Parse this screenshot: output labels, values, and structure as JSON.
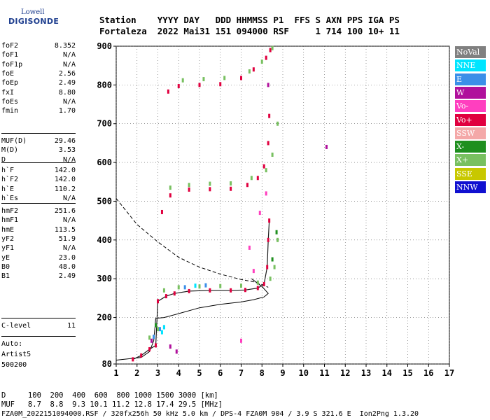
{
  "logo": {
    "line1": "Lowell",
    "line2": "DIGISONDE"
  },
  "header": {
    "row1": "Station    YYYY DAY   DDD HHMMSS P1  FFS S AXN PPS IGA PS",
    "row2": "Fortaleza  2022 Mai31 151 094000 RSF     1 714 100 10+ 11"
  },
  "params": {
    "group1": [
      {
        "k": "foF2",
        "v": "8.352"
      },
      {
        "k": "foF1",
        "v": "N/A"
      },
      {
        "k": "foF1p",
        "v": "N/A"
      },
      {
        "k": "foE",
        "v": "2.56"
      },
      {
        "k": "foEp",
        "v": "2.49"
      },
      {
        "k": "fxI",
        "v": "8.80"
      },
      {
        "k": "foEs",
        "v": "N/A"
      },
      {
        "k": "fmin",
        "v": "1.70"
      }
    ],
    "group2": [
      {
        "k": "MUF(D)",
        "v": "29.46"
      },
      {
        "k": "M(D)",
        "v": "3.53"
      },
      {
        "k": "D",
        "v": "N/A"
      }
    ],
    "group3": [
      {
        "k": "h`F",
        "v": "142.0"
      },
      {
        "k": "h`F2",
        "v": "142.0"
      },
      {
        "k": "h`E",
        "v": "110.2"
      },
      {
        "k": "h`Es",
        "v": "N/A"
      }
    ],
    "group4": [
      {
        "k": "hmF2",
        "v": "251.6"
      },
      {
        "k": "hmF1",
        "v": "N/A"
      },
      {
        "k": "hmE",
        "v": "113.5"
      },
      {
        "k": "yF2",
        "v": "51.9"
      },
      {
        "k": "yF1",
        "v": "N/A"
      },
      {
        "k": "yE",
        "v": "23.0"
      },
      {
        "k": "B0",
        "v": "48.0"
      },
      {
        "k": "B1",
        "v": "2.49"
      }
    ],
    "clevel": {
      "k": "C-level",
      "v": "11"
    },
    "auto": [
      "Auto:",
      "Artist5",
      "500200"
    ]
  },
  "legend": [
    {
      "label": "NoVal",
      "color": "#808080"
    },
    {
      "label": "NNE",
      "color": "#00e5ff"
    },
    {
      "label": "E",
      "color": "#3b8fe8"
    },
    {
      "label": "W",
      "color": "#b0109c"
    },
    {
      "label": "Vo-",
      "color": "#ff3fbf"
    },
    {
      "label": "Vo+",
      "color": "#e0003f"
    },
    {
      "label": "SSW",
      "color": "#f4a8a8"
    },
    {
      "label": "X-",
      "color": "#1f8f1f"
    },
    {
      "label": "X+",
      "color": "#78c060"
    },
    {
      "label": "SSE",
      "color": "#c8c800"
    },
    {
      "label": "NNW",
      "color": "#1010d0"
    }
  ],
  "bottom": {
    "row1": "D     100  200  400  600  800 1000 1500 3000 [km]",
    "row2": "MUF   8.7  8.8  9.3 10.1 11.2 12.8 17.4 29.5 [MHz]",
    "row3": "FZA0M_2022151094000.RSF / 320fx256h 50 kHz 5.0 km / DPS-4 FZA0M 904 / 3.9 S 321.6 E  Ion2Png 1.3.20"
  },
  "chart_data": {
    "type": "scatter",
    "xlim": [
      1,
      17
    ],
    "ylim": [
      80,
      900
    ],
    "xticks": [
      1,
      2,
      3,
      4,
      5,
      6,
      7,
      8,
      9,
      10,
      11,
      12,
      13,
      14,
      15,
      16,
      17
    ],
    "yticks": [
      80,
      200,
      300,
      400,
      500,
      600,
      700,
      800,
      900
    ],
    "grid": true,
    "series": [
      {
        "name": "Vo+",
        "color": "#e0003f",
        "points": [
          [
            1.8,
            92
          ],
          [
            2.2,
            102
          ],
          [
            2.6,
            118
          ],
          [
            2.9,
            128
          ],
          [
            3.0,
            242
          ],
          [
            3.4,
            255
          ],
          [
            3.8,
            262
          ],
          [
            4.5,
            268
          ],
          [
            5.5,
            270
          ],
          [
            6.5,
            270
          ],
          [
            7.2,
            271
          ],
          [
            7.8,
            276
          ],
          [
            8.1,
            286
          ],
          [
            8.25,
            330
          ],
          [
            8.3,
            400
          ],
          [
            8.35,
            450
          ],
          [
            3.2,
            472
          ],
          [
            3.6,
            515
          ],
          [
            4.5,
            530
          ],
          [
            5.5,
            531
          ],
          [
            6.5,
            532
          ],
          [
            7.3,
            542
          ],
          [
            7.8,
            560
          ],
          [
            8.1,
            590
          ],
          [
            8.3,
            650
          ],
          [
            8.35,
            720
          ],
          [
            3.5,
            783
          ],
          [
            4.0,
            797
          ],
          [
            5.0,
            800
          ],
          [
            6.0,
            802
          ],
          [
            7.0,
            818
          ],
          [
            7.6,
            840
          ],
          [
            8.2,
            870
          ],
          [
            8.4,
            890
          ]
        ]
      },
      {
        "name": "X+",
        "color": "#78c060",
        "points": [
          [
            2.6,
            148
          ],
          [
            3.0,
            170
          ],
          [
            3.3,
            270
          ],
          [
            4.0,
            278
          ],
          [
            5.0,
            280
          ],
          [
            6.0,
            281
          ],
          [
            7.0,
            282
          ],
          [
            7.8,
            290
          ],
          [
            8.4,
            300
          ],
          [
            8.6,
            330
          ],
          [
            8.75,
            400
          ],
          [
            3.6,
            535
          ],
          [
            4.5,
            542
          ],
          [
            5.5,
            545
          ],
          [
            6.5,
            546
          ],
          [
            7.5,
            560
          ],
          [
            8.2,
            580
          ],
          [
            8.5,
            620
          ],
          [
            8.75,
            700
          ],
          [
            4.2,
            812
          ],
          [
            5.2,
            815
          ],
          [
            6.2,
            818
          ],
          [
            7.4,
            835
          ],
          [
            8.0,
            860
          ],
          [
            8.5,
            895
          ]
        ]
      },
      {
        "name": "E",
        "color": "#3b8fe8",
        "points": [
          [
            2.8,
            150
          ],
          [
            3.1,
            170
          ],
          [
            3.3,
            175
          ],
          [
            4.3,
            278
          ],
          [
            5.3,
            283
          ]
        ]
      },
      {
        "name": "NNE",
        "color": "#00e5ff",
        "points": [
          [
            3.2,
            162
          ],
          [
            3.3,
            175
          ],
          [
            4.8,
            282
          ]
        ]
      },
      {
        "name": "W",
        "color": "#b0109c",
        "points": [
          [
            2.7,
            140
          ],
          [
            3.6,
            125
          ],
          [
            3.9,
            112
          ],
          [
            11.1,
            640
          ],
          [
            8.3,
            800
          ]
        ]
      },
      {
        "name": "Vo-",
        "color": "#ff3fbf",
        "points": [
          [
            7.4,
            380
          ],
          [
            7.6,
            320
          ],
          [
            7.9,
            470
          ],
          [
            8.2,
            520
          ],
          [
            7.0,
            140
          ]
        ]
      },
      {
        "name": "X-",
        "color": "#1f8f1f",
        "points": [
          [
            8.5,
            350
          ],
          [
            8.7,
            420
          ],
          [
            2.9,
            180
          ]
        ]
      }
    ],
    "profile_solid": [
      [
        1.0,
        90
      ],
      [
        2.2,
        97
      ],
      [
        2.6,
        112
      ],
      [
        2.8,
        140
      ],
      [
        2.9,
        198
      ],
      [
        3.3,
        200
      ],
      [
        4.0,
        210
      ],
      [
        5.0,
        225
      ],
      [
        6.0,
        234
      ],
      [
        7.0,
        240
      ],
      [
        7.6,
        246
      ],
      [
        8.1,
        253
      ],
      [
        8.3,
        262
      ],
      [
        8.0,
        280
      ],
      [
        7.5,
        300
      ]
    ],
    "profile_dashed": [
      [
        1.0,
        507
      ],
      [
        2.0,
        440
      ],
      [
        3.0,
        395
      ],
      [
        4.0,
        355
      ],
      [
        5.0,
        330
      ],
      [
        6.0,
        312
      ],
      [
        7.0,
        298
      ],
      [
        7.6,
        292
      ],
      [
        8.0,
        285
      ],
      [
        8.3,
        278
      ]
    ]
  }
}
